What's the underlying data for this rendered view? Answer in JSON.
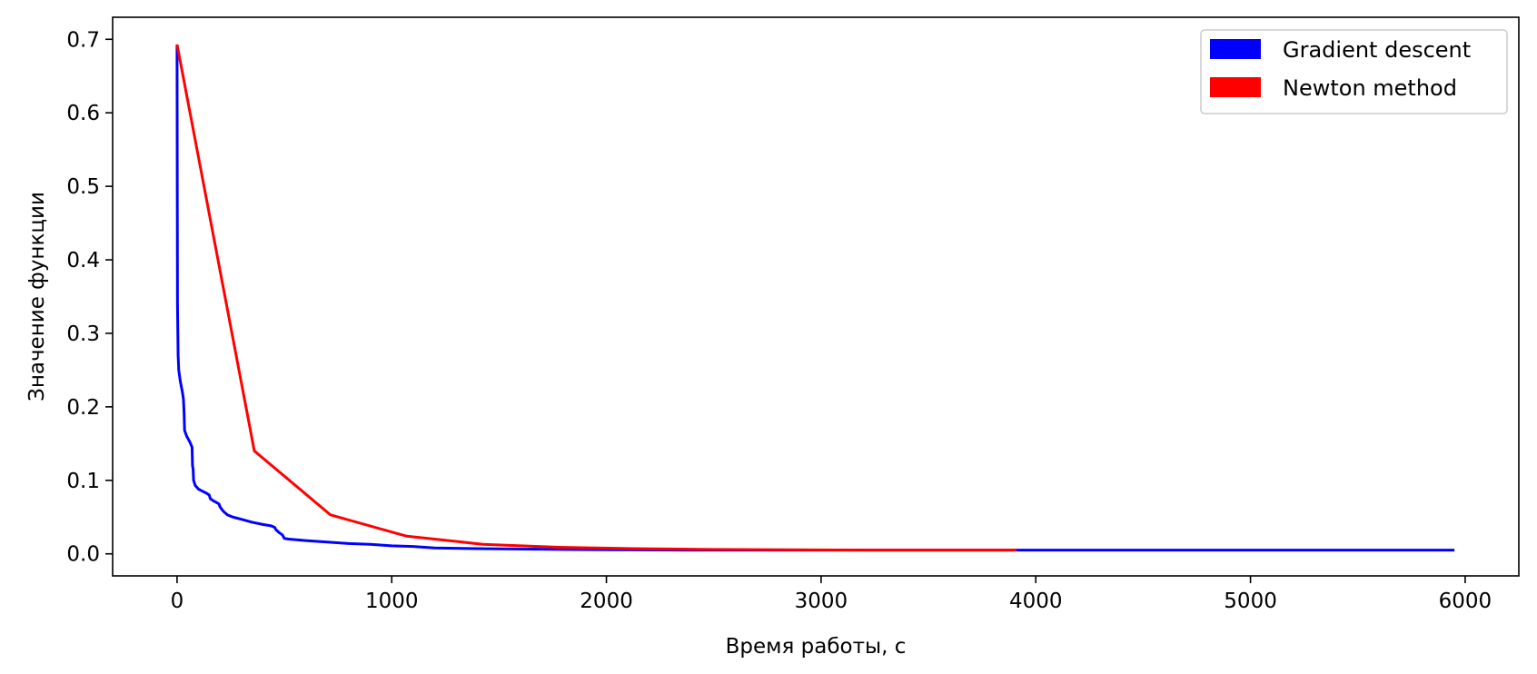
{
  "chart_data": {
    "type": "line",
    "title": "",
    "xlabel": "Время работы, с",
    "ylabel": "Значение функции",
    "xlim": [
      -300,
      6250
    ],
    "ylim": [
      -0.03,
      0.73
    ],
    "xticks": [
      0,
      1000,
      2000,
      3000,
      4000,
      5000,
      6000
    ],
    "yticks": [
      0.0,
      0.1,
      0.2,
      0.3,
      0.4,
      0.5,
      0.6,
      0.7
    ],
    "grid": false,
    "legend_position": "top-right",
    "series": [
      {
        "name": "Gradient descent",
        "color": "#0000ff",
        "points": [
          [
            0,
            0.693
          ],
          [
            1,
            0.5
          ],
          [
            2,
            0.34
          ],
          [
            5,
            0.27
          ],
          [
            8,
            0.25
          ],
          [
            15,
            0.235
          ],
          [
            25,
            0.22
          ],
          [
            30,
            0.21
          ],
          [
            33,
            0.19
          ],
          [
            35,
            0.168
          ],
          [
            45,
            0.16
          ],
          [
            60,
            0.152
          ],
          [
            70,
            0.145
          ],
          [
            72,
            0.12
          ],
          [
            75,
            0.115
          ],
          [
            77,
            0.1
          ],
          [
            85,
            0.093
          ],
          [
            100,
            0.088
          ],
          [
            120,
            0.085
          ],
          [
            140,
            0.082
          ],
          [
            150,
            0.08
          ],
          [
            155,
            0.075
          ],
          [
            170,
            0.072
          ],
          [
            195,
            0.068
          ],
          [
            200,
            0.064
          ],
          [
            215,
            0.058
          ],
          [
            235,
            0.053
          ],
          [
            260,
            0.05
          ],
          [
            300,
            0.047
          ],
          [
            350,
            0.043
          ],
          [
            400,
            0.04
          ],
          [
            440,
            0.038
          ],
          [
            455,
            0.036
          ],
          [
            460,
            0.033
          ],
          [
            475,
            0.029
          ],
          [
            490,
            0.026
          ],
          [
            500,
            0.021
          ],
          [
            520,
            0.02
          ],
          [
            600,
            0.018
          ],
          [
            700,
            0.016
          ],
          [
            800,
            0.014
          ],
          [
            900,
            0.013
          ],
          [
            1000,
            0.011
          ],
          [
            1100,
            0.01
          ],
          [
            1200,
            0.008
          ],
          [
            1400,
            0.007
          ],
          [
            1800,
            0.006
          ],
          [
            2500,
            0.005
          ],
          [
            4000,
            0.005
          ],
          [
            5950,
            0.005
          ]
        ]
      },
      {
        "name": "Newton method",
        "color": "#ff0000",
        "points": [
          [
            0,
            0.693
          ],
          [
            360,
            0.14
          ],
          [
            715,
            0.053
          ],
          [
            1070,
            0.024
          ],
          [
            1425,
            0.013
          ],
          [
            1780,
            0.009
          ],
          [
            2135,
            0.007
          ],
          [
            2490,
            0.006
          ],
          [
            2845,
            0.0055
          ],
          [
            3200,
            0.005
          ],
          [
            3555,
            0.005
          ],
          [
            3910,
            0.005
          ]
        ]
      }
    ]
  }
}
